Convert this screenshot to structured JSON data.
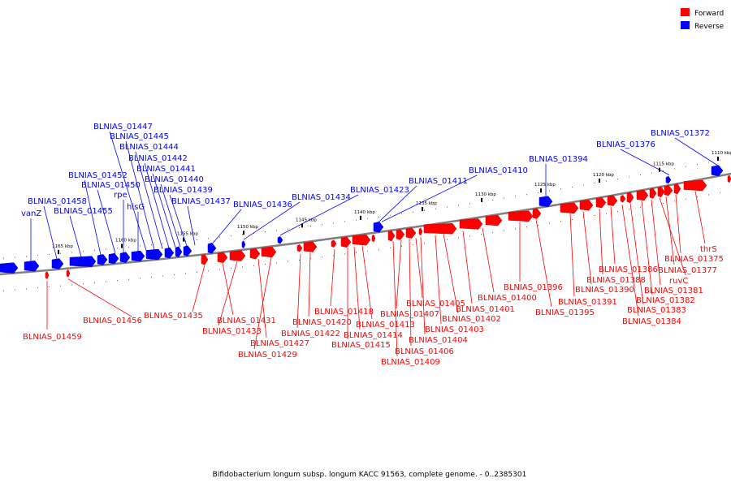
{
  "caption": "Bifidobacterium longum subsp. longum KACC 91563, complete genome. - 0..2385301",
  "legend": [
    {
      "label": "Forward",
      "color": "#ff0000"
    },
    {
      "label": "Reverse",
      "color": "#0000ff"
    }
  ],
  "colors": {
    "forward": "#ff0000",
    "reverse": "#0000ff",
    "backbone": "#808080"
  },
  "ticks": [
    "1165 kbp",
    "1160 kbp",
    "1155 kbp",
    "1150 kbp",
    "1145 kbp",
    "1140 kbp",
    "1135 kbp",
    "1130 kbp",
    "1125 kbp",
    "1120 kbp",
    "1115 kbp",
    "1110 kbp"
  ],
  "reverse_labels": [
    "vanZ",
    "BLNIAS_01458",
    "BLNIAS_01455",
    "BLNIAS_01452",
    "BLNIAS_01450",
    "rpe",
    "hisG",
    "BLNIAS_01447",
    "BLNIAS_01445",
    "BLNIAS_01444",
    "BLNIAS_01442",
    "BLNIAS_01441",
    "BLNIAS_01440",
    "BLNIAS_01439",
    "BLNIAS_01437",
    "BLNIAS_01436",
    "BLNIAS_01434",
    "BLNIAS_01423",
    "BLNIAS_01411",
    "BLNIAS_01410",
    "BLNIAS_01394",
    "BLNIAS_01376",
    "BLNIAS_01372"
  ],
  "forward_labels": [
    "BLNIAS_01459",
    "BLNIAS_01456",
    "BLNIAS_01435",
    "BLNIAS_01431",
    "BLNIAS_01433",
    "BLNIAS_01427",
    "BLNIAS_01429",
    "BLNIAS_01422",
    "BLNIAS_01420",
    "BLNIAS_01418",
    "BLNIAS_01415",
    "BLNIAS_01414",
    "BLNIAS_01413",
    "BLNIAS_01409",
    "BLNIAS_01407",
    "BLNIAS_01406",
    "BLNIAS_01405",
    "BLNIAS_01404",
    "BLNIAS_01403",
    "BLNIAS_01402",
    "BLNIAS_01401",
    "BLNIAS_01400",
    "BLNIAS_01396",
    "BLNIAS_01395",
    "BLNIAS_01391",
    "BLNIAS_01390",
    "BLNIAS_01388",
    "BLNIAS_01386",
    "BLNIAS_01384",
    "BLNIAS_01383",
    "BLNIAS_01382",
    "BLNIAS_01381",
    "ruvC",
    "BLNIAS_01377",
    "BLNIAS_01375",
    "thrS"
  ]
}
